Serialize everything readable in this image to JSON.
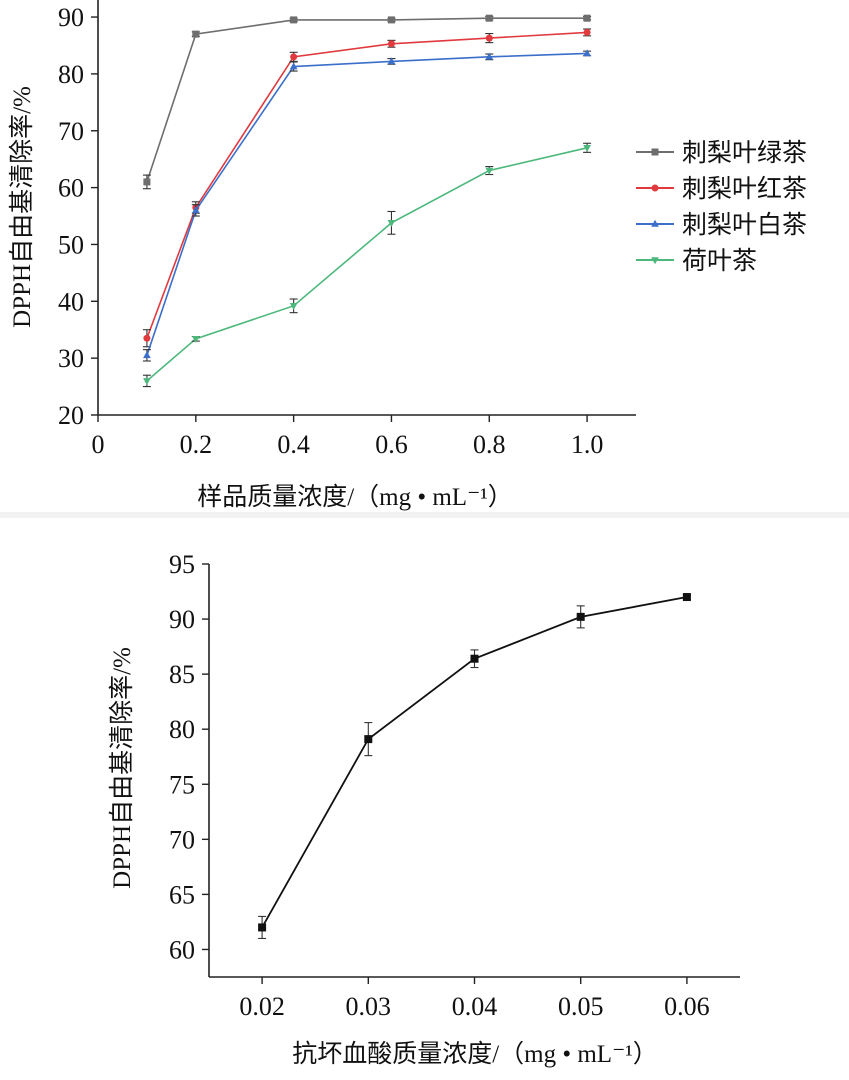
{
  "chart_data": [
    {
      "type": "line",
      "x": [
        0.1,
        0.2,
        0.4,
        0.6,
        0.8,
        1.0
      ],
      "xlabel": "样品质量浓度/（mg • mL⁻¹）",
      "ylabel": "DPPH自由基清除率/%",
      "xlim": [
        0,
        1.1
      ],
      "ylim": [
        20,
        93
      ],
      "xticks": [
        0,
        0.2,
        0.4,
        0.6,
        0.8,
        1.0
      ],
      "xtick_labels": [
        "0",
        "0.2",
        "0.4",
        "0.6",
        "0.8",
        "1.0"
      ],
      "yticks": [
        20,
        30,
        40,
        50,
        60,
        70,
        80,
        90
      ],
      "ytick_labels": [
        "20",
        "30",
        "40",
        "50",
        "60",
        "70",
        "80",
        "90"
      ],
      "grid": false,
      "legend_position": "right",
      "series": [
        {
          "name": "刺梨叶绿茶",
          "color": "#6e6e6e",
          "marker": "square",
          "values": [
            61,
            87,
            89.5,
            89.5,
            89.8,
            89.8
          ],
          "errors": [
            1.2,
            0.4,
            0.3,
            0.3,
            0.3,
            0.3
          ]
        },
        {
          "name": "刺梨叶红茶",
          "color": "#e0393e",
          "marker": "circle",
          "values": [
            33.5,
            56.5,
            83,
            85.3,
            86.3,
            87.3
          ],
          "errors": [
            1.5,
            1.0,
            0.8,
            0.6,
            0.8,
            0.6
          ]
        },
        {
          "name": "刺梨叶白茶",
          "color": "#3b6fc9",
          "marker": "triangle-up",
          "values": [
            30.5,
            56,
            81.3,
            82.2,
            83,
            83.6
          ],
          "errors": [
            1.0,
            1.0,
            0.8,
            0.5,
            0.5,
            0.4
          ]
        },
        {
          "name": "荷叶茶",
          "color": "#4db87c",
          "marker": "triangle-down",
          "values": [
            26,
            33.4,
            39.2,
            53.8,
            63,
            67
          ],
          "errors": [
            1.0,
            0.4,
            1.2,
            2.0,
            0.7,
            0.8
          ]
        }
      ]
    },
    {
      "type": "line",
      "x": [
        0.02,
        0.03,
        0.04,
        0.05,
        0.06
      ],
      "xlabel": "抗坏血酸质量浓度/（mg • mL⁻¹）",
      "ylabel": "DPPH自由基清除率/%",
      "xlim": [
        0.015,
        0.065
      ],
      "ylim": [
        57.5,
        95
      ],
      "xticks": [
        0.02,
        0.03,
        0.04,
        0.05,
        0.06
      ],
      "xtick_labels": [
        "0.02",
        "0.03",
        "0.04",
        "0.05",
        "0.06"
      ],
      "yticks": [
        60,
        65,
        70,
        75,
        80,
        85,
        90,
        95
      ],
      "ytick_labels": [
        "60",
        "65",
        "70",
        "75",
        "80",
        "85",
        "90",
        "95"
      ],
      "grid": false,
      "series": [
        {
          "color": "#111111",
          "marker": "square",
          "values": [
            62,
            79.1,
            86.4,
            90.2,
            92
          ],
          "errors": [
            1.0,
            1.5,
            0.8,
            1.0,
            0.2
          ]
        }
      ]
    }
  ]
}
